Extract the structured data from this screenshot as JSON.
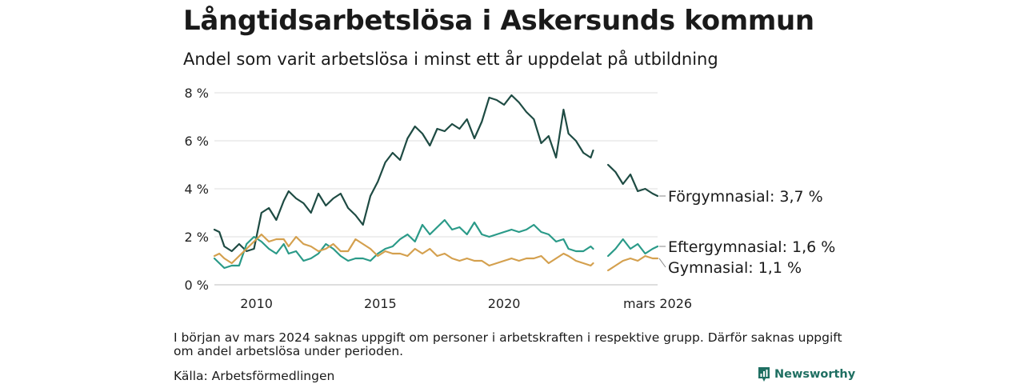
{
  "header": {
    "title": "Långtidsarbetslösa i Askersunds kommun",
    "subtitle": "Andel som varit arbetslösa i minst ett år uppdelat på utbildning"
  },
  "footer": {
    "note": "I början av mars 2024 saknas uppgift om personer i arbetskraften i respektive grupp. Därför saknas uppgift om andel arbetslösa under perioden.",
    "source": "Källa: Arbetsförmedlingen",
    "brand": "Newsworthy"
  },
  "chart_data": {
    "type": "line",
    "title": "Långtidsarbetslösa i Askersunds kommun",
    "subtitle": "Andel som varit arbetslösa i minst ett år uppdelat på utbildning",
    "xlabel": "",
    "ylabel": "",
    "xlim": [
      2008.3,
      2026.2
    ],
    "ylim": [
      0,
      8
    ],
    "yticks": [
      0,
      2,
      4,
      6,
      8
    ],
    "ytick_labels": [
      "0 %",
      "2 %",
      "4 %",
      "6 %",
      "8 %"
    ],
    "xticks": [
      2010,
      2015,
      2020,
      2026.2
    ],
    "xtick_labels": [
      "2010",
      "2015",
      "2020",
      "mars 2026"
    ],
    "grid": "horizontal",
    "gap": [
      2023.6,
      2024.2
    ],
    "series": [
      {
        "name": "Förgymnasial",
        "label": "Förgymnasial: 3,7 %",
        "color": "#1e4b43",
        "x": [
          2008.3,
          2008.5,
          2008.7,
          2009.0,
          2009.3,
          2009.6,
          2009.9,
          2010.2,
          2010.5,
          2010.8,
          2011.1,
          2011.3,
          2011.6,
          2011.9,
          2012.2,
          2012.5,
          2012.8,
          2013.1,
          2013.4,
          2013.7,
          2014.0,
          2014.3,
          2014.6,
          2014.9,
          2015.2,
          2015.5,
          2015.8,
          2016.1,
          2016.4,
          2016.7,
          2017.0,
          2017.3,
          2017.6,
          2017.9,
          2018.2,
          2018.5,
          2018.8,
          2019.1,
          2019.4,
          2019.7,
          2020.0,
          2020.3,
          2020.6,
          2020.9,
          2021.2,
          2021.5,
          2021.8,
          2022.1,
          2022.4,
          2022.6,
          2022.9,
          2023.2,
          2023.5,
          2023.6,
          2024.2,
          2024.5,
          2024.8,
          2025.1,
          2025.4,
          2025.7,
          2026.0,
          2026.2
        ],
        "values": [
          2.3,
          2.2,
          1.6,
          1.4,
          1.7,
          1.4,
          1.5,
          3.0,
          3.2,
          2.7,
          3.5,
          3.9,
          3.6,
          3.4,
          3.0,
          3.8,
          3.3,
          3.6,
          3.8,
          3.2,
          2.9,
          2.5,
          3.7,
          4.3,
          5.1,
          5.5,
          5.2,
          6.1,
          6.6,
          6.3,
          5.8,
          6.5,
          6.4,
          6.7,
          6.5,
          6.9,
          6.1,
          6.8,
          7.8,
          7.7,
          7.5,
          7.9,
          7.6,
          7.2,
          6.9,
          5.9,
          6.2,
          5.3,
          7.3,
          6.3,
          6.0,
          5.5,
          5.3,
          5.6,
          5.0,
          4.7,
          4.2,
          4.6,
          3.9,
          4.0,
          3.8,
          3.7
        ]
      },
      {
        "name": "Eftergymnasial",
        "label": "Eftergymnasial: 1,6 %",
        "color": "#2a9a88",
        "x": [
          2008.3,
          2008.5,
          2008.7,
          2009.0,
          2009.3,
          2009.6,
          2009.9,
          2010.2,
          2010.5,
          2010.8,
          2011.1,
          2011.3,
          2011.6,
          2011.9,
          2012.2,
          2012.5,
          2012.8,
          2013.1,
          2013.4,
          2013.7,
          2014.0,
          2014.3,
          2014.6,
          2014.9,
          2015.2,
          2015.5,
          2015.8,
          2016.1,
          2016.4,
          2016.7,
          2017.0,
          2017.3,
          2017.6,
          2017.9,
          2018.2,
          2018.5,
          2018.8,
          2019.1,
          2019.4,
          2019.7,
          2020.0,
          2020.3,
          2020.6,
          2020.9,
          2021.2,
          2021.5,
          2021.8,
          2022.1,
          2022.4,
          2022.6,
          2022.9,
          2023.2,
          2023.5,
          2023.6,
          2024.2,
          2024.5,
          2024.8,
          2025.1,
          2025.4,
          2025.7,
          2026.0,
          2026.2
        ],
        "values": [
          1.1,
          0.9,
          0.7,
          0.8,
          0.8,
          1.7,
          2.0,
          1.8,
          1.5,
          1.3,
          1.7,
          1.3,
          1.4,
          1.0,
          1.1,
          1.3,
          1.7,
          1.5,
          1.2,
          1.0,
          1.1,
          1.1,
          1.0,
          1.3,
          1.5,
          1.6,
          1.9,
          2.1,
          1.8,
          2.5,
          2.1,
          2.4,
          2.7,
          2.3,
          2.4,
          2.1,
          2.6,
          2.1,
          2.0,
          2.1,
          2.2,
          2.3,
          2.2,
          2.3,
          2.5,
          2.2,
          2.1,
          1.8,
          1.9,
          1.5,
          1.4,
          1.4,
          1.6,
          1.5,
          1.2,
          1.5,
          1.9,
          1.5,
          1.7,
          1.3,
          1.5,
          1.6
        ]
      },
      {
        "name": "Gymnasial",
        "label": "Gymnasial: 1,1 %",
        "color": "#d4a04e",
        "x": [
          2008.3,
          2008.5,
          2008.7,
          2009.0,
          2009.3,
          2009.6,
          2009.9,
          2010.2,
          2010.5,
          2010.8,
          2011.1,
          2011.3,
          2011.6,
          2011.9,
          2012.2,
          2012.5,
          2012.8,
          2013.1,
          2013.4,
          2013.7,
          2014.0,
          2014.3,
          2014.6,
          2014.9,
          2015.2,
          2015.5,
          2015.8,
          2016.1,
          2016.4,
          2016.7,
          2017.0,
          2017.3,
          2017.6,
          2017.9,
          2018.2,
          2018.5,
          2018.8,
          2019.1,
          2019.4,
          2019.7,
          2020.0,
          2020.3,
          2020.6,
          2020.9,
          2021.2,
          2021.5,
          2021.8,
          2022.1,
          2022.4,
          2022.6,
          2022.9,
          2023.2,
          2023.5,
          2023.6,
          2024.2,
          2024.5,
          2024.8,
          2025.1,
          2025.4,
          2025.7,
          2026.0,
          2026.2
        ],
        "values": [
          1.2,
          1.3,
          1.1,
          0.9,
          1.2,
          1.5,
          1.8,
          2.1,
          1.8,
          1.9,
          1.9,
          1.6,
          2.0,
          1.7,
          1.6,
          1.4,
          1.5,
          1.7,
          1.4,
          1.4,
          1.9,
          1.7,
          1.5,
          1.2,
          1.4,
          1.3,
          1.3,
          1.2,
          1.5,
          1.3,
          1.5,
          1.2,
          1.3,
          1.1,
          1.0,
          1.1,
          1.0,
          1.0,
          0.8,
          0.9,
          1.0,
          1.1,
          1.0,
          1.1,
          1.1,
          1.2,
          0.9,
          1.1,
          1.3,
          1.2,
          1.0,
          0.9,
          0.8,
          0.9,
          0.6,
          0.8,
          1.0,
          1.1,
          1.0,
          1.2,
          1.1,
          1.1
        ]
      }
    ]
  }
}
